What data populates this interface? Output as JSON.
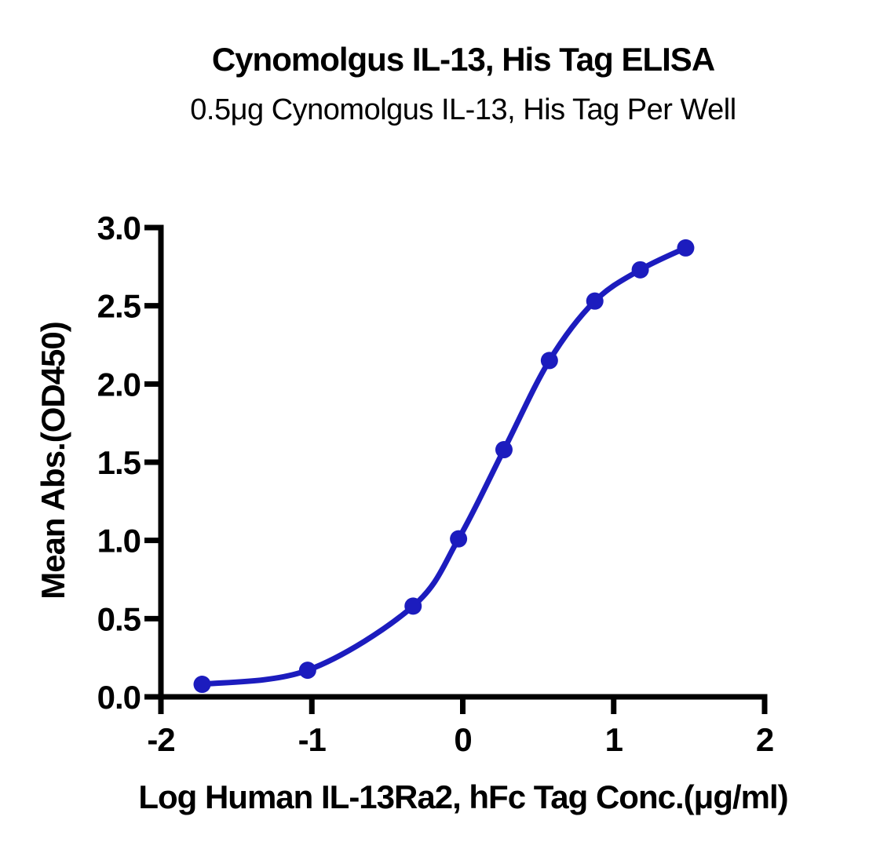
{
  "chart_data": {
    "type": "line",
    "title": "Cynomolgus IL-13, His Tag ELISA",
    "subtitle": "0.5μg Cynomolgus IL-13, His Tag Per Well",
    "xlabel": "Log Human IL-13Ra2, hFc Tag Conc.(μg/ml)",
    "ylabel": "Mean Abs.(OD450)",
    "xlim": [
      -2,
      2
    ],
    "ylim": [
      0.0,
      3.0
    ],
    "x_ticks": [
      -2,
      -1,
      0,
      1,
      2
    ],
    "x_tick_labels": [
      "-2",
      "-1",
      "0",
      "1",
      "2"
    ],
    "y_ticks": [
      0.0,
      0.5,
      1.0,
      1.5,
      2.0,
      2.5,
      3.0
    ],
    "y_tick_labels": [
      "0.0",
      "0.5",
      "1.0",
      "1.5",
      "2.0",
      "2.5",
      "3.0"
    ],
    "grid": false,
    "legend": "none",
    "series": [
      {
        "color": "#1c1cbe",
        "marker": "circle",
        "x": [
          -1.727,
          -1.028,
          -0.329,
          -0.028,
          0.273,
          0.574,
          0.875,
          1.176,
          1.477
        ],
        "y": [
          0.08,
          0.17,
          0.58,
          1.01,
          1.58,
          2.15,
          2.53,
          2.73,
          2.87
        ]
      }
    ]
  }
}
